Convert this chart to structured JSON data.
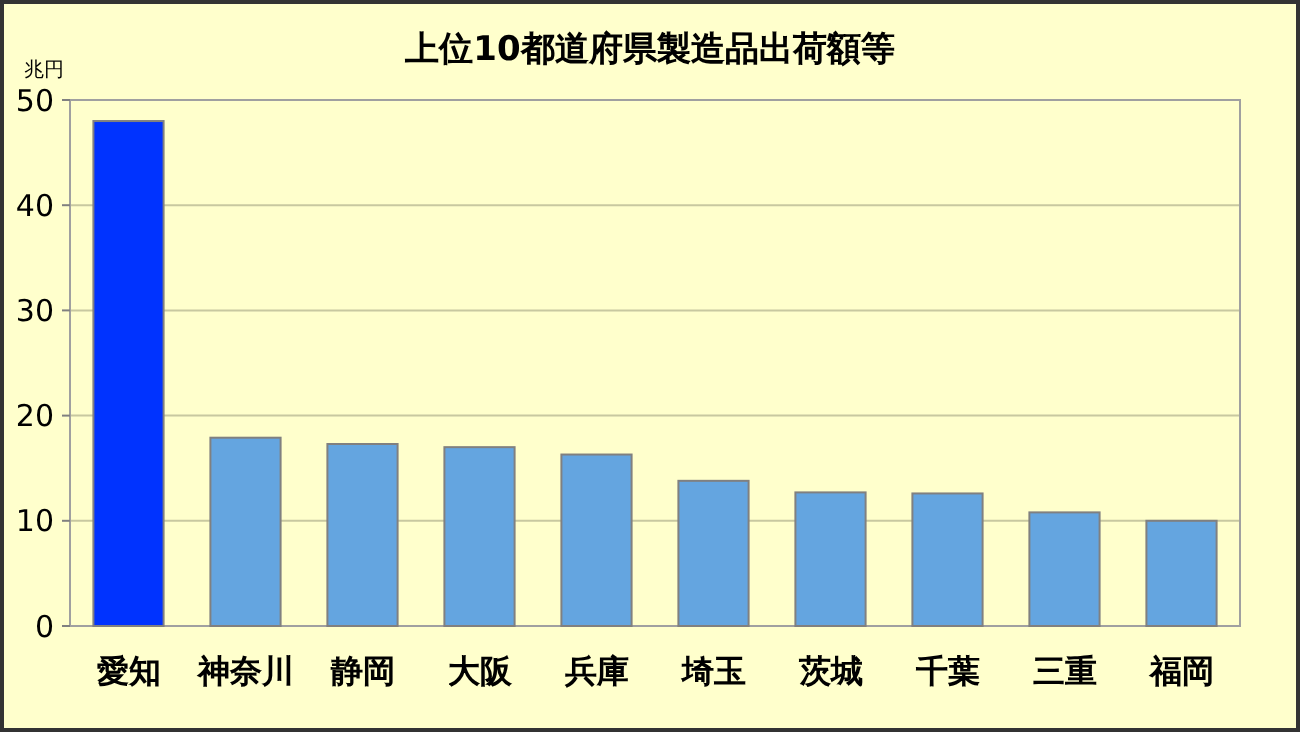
{
  "chart_data": {
    "type": "bar",
    "title": "上位10都道府県製造品出荷額等",
    "ylabel": "兆円",
    "categories": [
      "愛知",
      "神奈川",
      "静岡",
      "大阪",
      "兵庫",
      "埼玉",
      "茨城",
      "千葉",
      "三重",
      "福岡"
    ],
    "values": [
      48,
      17.9,
      17.3,
      17.0,
      16.3,
      13.8,
      12.7,
      12.6,
      10.8,
      10.0
    ],
    "colors": [
      "#0033ff",
      "#64a5e0",
      "#64a5e0",
      "#64a5e0",
      "#64a5e0",
      "#64a5e0",
      "#64a5e0",
      "#64a5e0",
      "#64a5e0",
      "#64a5e0"
    ],
    "ylim": [
      0,
      50
    ],
    "yticks": [
      0,
      10,
      20,
      30,
      40,
      50
    ],
    "grid": "y"
  }
}
